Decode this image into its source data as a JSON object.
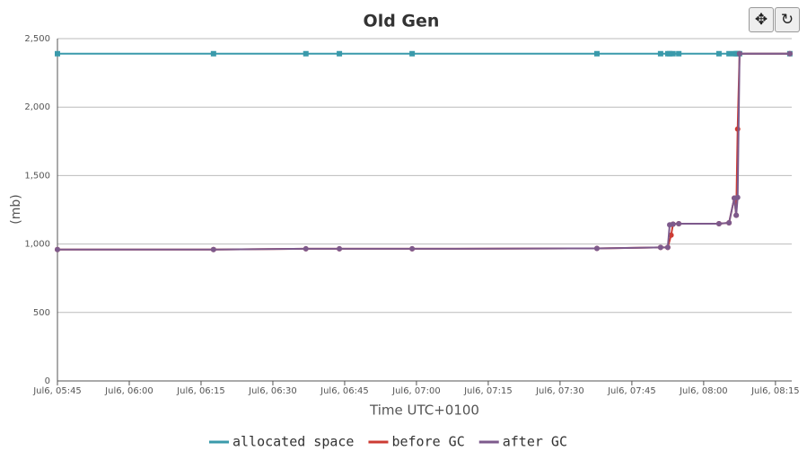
{
  "chart_data": {
    "type": "line",
    "title": "Old Gen",
    "y_label": "(mb)",
    "x_label": "Time UTC+0100",
    "xlim": [
      345,
      498.4
    ],
    "xticks": [
      {
        "value": 345,
        "label": "Jul6, 05:45"
      },
      {
        "value": 360,
        "label": "Jul6, 06:00"
      },
      {
        "value": 375,
        "label": "Jul6, 06:15"
      },
      {
        "value": 390,
        "label": "Jul6, 06:30"
      },
      {
        "value": 405,
        "label": "Jul6, 06:45"
      },
      {
        "value": 420,
        "label": "Jul6, 07:00"
      },
      {
        "value": 435,
        "label": "Jul6, 07:15"
      },
      {
        "value": 450,
        "label": "Jul6, 07:30"
      },
      {
        "value": 465,
        "label": "Jul6, 07:45"
      },
      {
        "value": 480,
        "label": "Jul6, 08:00"
      },
      {
        "value": 495,
        "label": "Jul6, 08:15"
      }
    ],
    "ylim": [
      0,
      2500
    ],
    "yticks": [
      0,
      500,
      {
        "value": 1000,
        "label": "1,000"
      },
      {
        "value": 1500,
        "label": "1,500"
      },
      {
        "value": 2000,
        "label": "2,000"
      },
      {
        "value": 2500,
        "label": "2,500"
      }
    ],
    "grid": true,
    "series": [
      {
        "name": "allocated space",
        "color": "#3a9aab",
        "marker": "square",
        "x": [
          345,
          377.6,
          396.9,
          403.9,
          419.1,
          457.7,
          471,
          472.5,
          472.9,
          473.6,
          474.8,
          483.2,
          485.3,
          486.4,
          486.8,
          487.1,
          487.5,
          498
        ],
        "values": [
          2390,
          2390,
          2390,
          2390,
          2390,
          2390,
          2390,
          2390,
          2390,
          2390,
          2390,
          2390,
          2390,
          2390,
          2390,
          2390,
          2390,
          2390
        ]
      },
      {
        "name": "before GC",
        "color": "#cc3b33",
        "marker": "circle",
        "x": [
          345,
          377.6,
          396.9,
          403.9,
          419.1,
          457.7,
          471,
          472.5,
          473.2,
          473.6,
          474.8,
          483.2,
          485.3,
          486.4,
          486.8,
          487.1,
          487.5,
          498
        ],
        "values": [
          960,
          960,
          965,
          965,
          965,
          968,
          975,
          975,
          1065,
          1145,
          1148,
          1148,
          1155,
          1335,
          1210,
          1840,
          2390,
          2390
        ]
      },
      {
        "name": "after GC",
        "color": "#7d5a8c",
        "marker": "circle",
        "x": [
          345,
          377.6,
          396.9,
          403.9,
          419.1,
          457.7,
          471,
          472.5,
          472.9,
          473.6,
          474.8,
          483.2,
          485.3,
          486.4,
          486.8,
          487.1,
          487.5,
          498
        ],
        "values": [
          960,
          960,
          965,
          965,
          965,
          968,
          975,
          975,
          1140,
          1145,
          1148,
          1148,
          1155,
          1335,
          1210,
          1340,
          2390,
          2390
        ]
      }
    ]
  }
}
